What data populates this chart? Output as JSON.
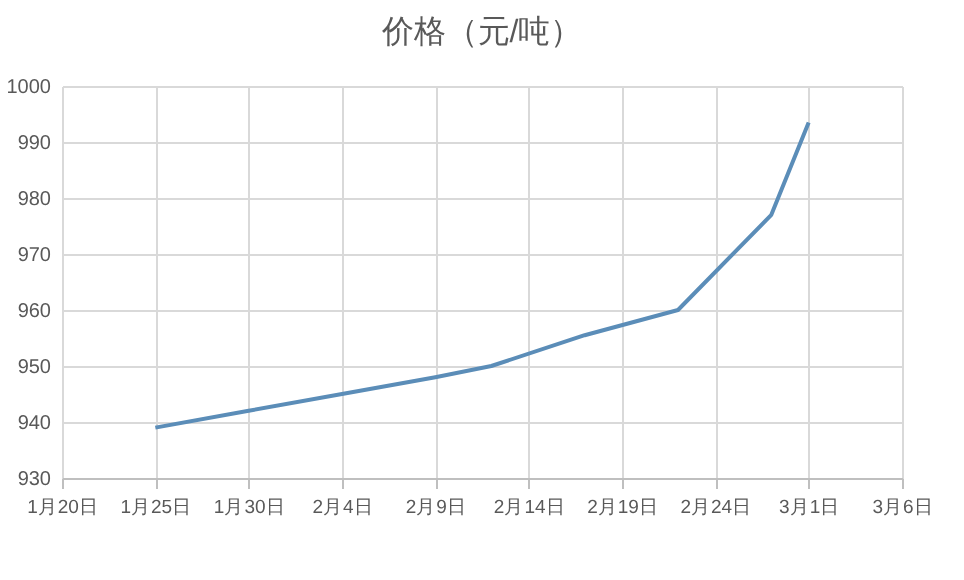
{
  "chart_data": {
    "type": "line",
    "title": "价格（元/吨）",
    "x": [
      "--01-25",
      "--01-30",
      "--02-04",
      "--02-09",
      "--02-12",
      "--02-17",
      "--02-22",
      "--02-27",
      "--03-01"
    ],
    "series": [
      {
        "color": "#5b8db8",
        "values": [
          939,
          942,
          945,
          948,
          950,
          955.5,
          960,
          977,
          993.5
        ]
      }
    ],
    "xlim": [
      "--01-20",
      "--03-06"
    ],
    "xticks": [
      {
        "value": "--01-20",
        "label": "1月20日"
      },
      {
        "value": "--01-25",
        "label": "1月25日"
      },
      {
        "value": "--01-30",
        "label": "1月30日"
      },
      {
        "value": "--02-04",
        "label": "2月4日"
      },
      {
        "value": "--02-09",
        "label": "2月9日"
      },
      {
        "value": "--02-14",
        "label": "2月14日"
      },
      {
        "value": "--02-19",
        "label": "2月19日"
      },
      {
        "value": "--02-24",
        "label": "2月24日"
      },
      {
        "value": "--03-01",
        "label": "3月1日"
      },
      {
        "value": "--03-06",
        "label": "3月6日"
      }
    ],
    "ylim": [
      930,
      1000
    ],
    "yticks": [
      930,
      940,
      950,
      960,
      970,
      980,
      990,
      1000
    ],
    "grid": true,
    "legend": false,
    "marker": "none",
    "line_style": "solid"
  }
}
